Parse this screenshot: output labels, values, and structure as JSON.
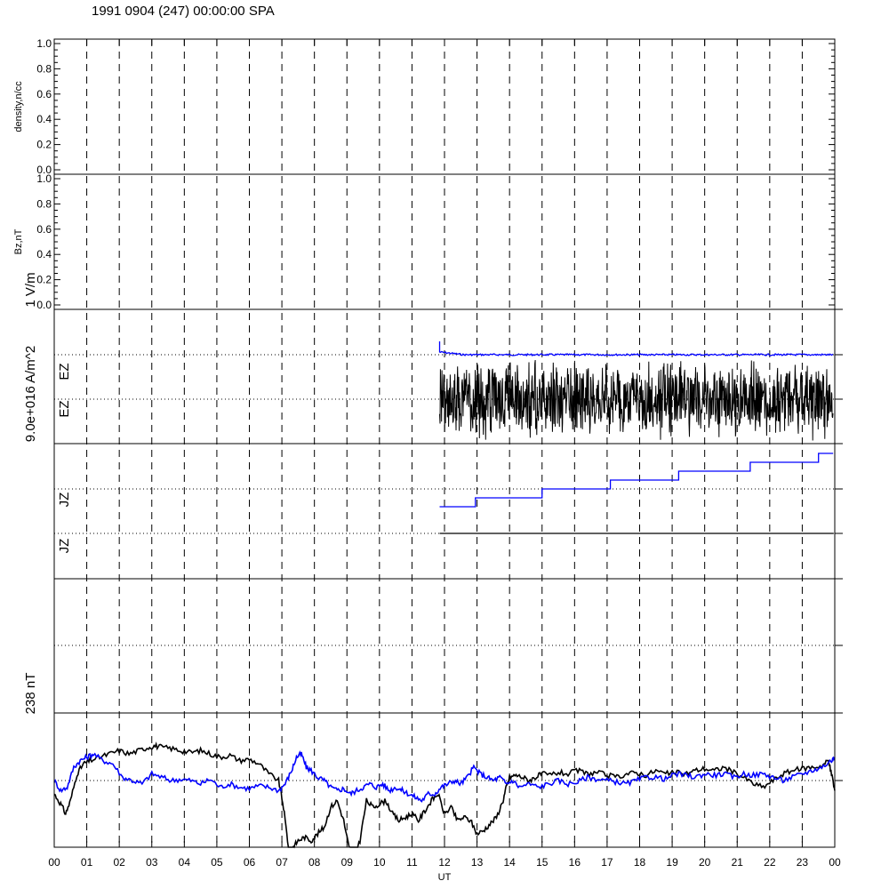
{
  "title": "1991 0904 (247) 00:00:00 SPA",
  "chart_data": {
    "type": "line",
    "xlabel": "UT",
    "xlim": [
      0,
      24
    ],
    "x_ticks": [
      "00",
      "01",
      "02",
      "03",
      "04",
      "05",
      "06",
      "07",
      "08",
      "09",
      "10",
      "11",
      "12",
      "13",
      "14",
      "15",
      "16",
      "17",
      "18",
      "19",
      "20",
      "21",
      "22",
      "23",
      "00"
    ],
    "grid": {
      "vertical_hourly_dashed": true,
      "dotted_reference_lines": true
    },
    "scale_labels": {
      "ef": "1 V/m",
      "jz": "9.0e+016 A/m^2",
      "mag": "238 nT"
    },
    "colors": {
      "primary": "#000000",
      "secondary": "#0000ff"
    },
    "panels": [
      {
        "id": "density",
        "ylabel": "density,n/cc",
        "ylim": [
          0,
          1
        ],
        "yticks": [
          "0.0",
          "0.2",
          "0.4",
          "0.6",
          "0.8",
          "1.0"
        ],
        "series": []
      },
      {
        "id": "bz",
        "ylabel": "Bz,nT",
        "ylim": [
          0,
          1
        ],
        "yticks": [
          "0.0",
          "0.2",
          "0.4",
          "0.6",
          "0.8",
          "1.0"
        ],
        "series": []
      },
      {
        "id": "ez",
        "ylabels": [
          "EZ",
          "EZ"
        ],
        "series": [
          {
            "color": "#0000ff",
            "x_start": 11.85,
            "x_end": 23.95,
            "level_scale_units": 2.0,
            "note_start_spike": 2.3
          },
          {
            "color": "#000000",
            "x_start": 11.85,
            "x_end": 23.95,
            "center_scale_units": 1.0,
            "half_range_scale_units": 0.95
          }
        ]
      },
      {
        "id": "jz",
        "ylabels": [
          "JZ",
          "JZ"
        ],
        "series": [
          {
            "color": "#0000ff",
            "type": "step",
            "x": [
              11.85,
              12.95,
              15.0,
              17.1,
              19.2,
              21.4,
              23.5,
              23.95
            ],
            "y_scale_units": [
              -0.4,
              -0.2,
              0.0,
              0.2,
              0.4,
              0.6,
              0.8,
              0.8
            ]
          },
          {
            "color": "#000000",
            "x_start": 11.85,
            "x_end": 23.95,
            "level_scale_units": -1.0
          }
        ]
      },
      {
        "id": "empty",
        "series": []
      },
      {
        "id": "mag",
        "note": "two magnetometer traces, y in units of the 238 nT scale, relative to central dotted line",
        "series": [
          {
            "color": "#000000",
            "x": [
              0.0,
              0.2,
              0.35,
              0.5,
              0.7,
              0.9,
              1.1,
              1.4,
              1.7,
              2.0,
              2.3,
              2.6,
              2.9,
              3.1,
              3.3,
              3.6,
              3.9,
              4.2,
              4.5,
              4.8,
              5.1,
              5.4,
              5.7,
              6.0,
              6.3,
              6.6,
              6.9,
              7.05,
              7.2,
              7.25,
              7.35,
              7.5,
              7.7,
              7.9,
              8.1,
              8.3,
              8.5,
              8.7,
              8.9,
              9.1,
              9.2,
              9.4,
              9.6,
              9.8,
              10.0,
              10.2,
              10.4,
              10.6,
              10.8,
              11.0,
              11.2,
              11.4,
              11.6,
              11.8,
              12.0,
              12.2,
              12.4,
              12.6,
              12.8,
              13.0,
              13.2,
              13.4,
              13.6,
              13.8,
              13.9,
              14.0,
              14.2,
              14.4,
              14.6,
              14.8,
              15.0,
              15.2,
              15.5,
              15.8,
              16.1,
              16.4,
              16.7,
              17.0,
              17.3,
              17.6,
              17.9,
              18.2,
              18.5,
              18.8,
              19.1,
              19.4,
              19.7,
              20.0,
              20.3,
              20.6,
              20.9,
              21.2,
              21.5,
              21.8,
              22.1,
              22.4,
              22.7,
              23.0,
              23.3,
              23.6,
              23.8,
              23.9,
              24.0
            ],
            "y": [
              -0.2,
              -0.35,
              -0.5,
              -0.3,
              0.1,
              0.25,
              0.3,
              0.35,
              0.4,
              0.45,
              0.4,
              0.45,
              0.5,
              0.52,
              0.5,
              0.48,
              0.45,
              0.42,
              0.45,
              0.4,
              0.35,
              0.38,
              0.3,
              0.32,
              0.25,
              0.1,
              0.0,
              -0.4,
              -1.0,
              -1.4,
              -1.0,
              -0.9,
              -0.85,
              -0.9,
              -0.8,
              -0.7,
              -0.4,
              -0.3,
              -0.6,
              -1.1,
              -1.2,
              -0.9,
              -0.3,
              -0.4,
              -0.35,
              -0.3,
              -0.5,
              -0.6,
              -0.55,
              -0.5,
              -0.6,
              -0.45,
              -0.3,
              -0.2,
              -0.5,
              -0.4,
              -0.6,
              -0.55,
              -0.6,
              -0.8,
              -0.75,
              -0.65,
              -0.55,
              -0.3,
              -0.1,
              0.05,
              0.08,
              0.05,
              0.0,
              0.05,
              0.1,
              0.08,
              0.12,
              0.1,
              0.15,
              0.1,
              0.12,
              0.08,
              0.05,
              0.1,
              0.12,
              0.08,
              0.15,
              0.1,
              0.12,
              0.1,
              0.15,
              0.18,
              0.15,
              0.2,
              0.12,
              0.05,
              -0.05,
              -0.1,
              0.0,
              0.1,
              0.15,
              0.18,
              0.2,
              0.22,
              0.3,
              0.1,
              -0.15
            ]
          },
          {
            "color": "#0000ff",
            "x": [
              0.0,
              0.2,
              0.4,
              0.6,
              0.8,
              1.0,
              1.2,
              1.5,
              1.8,
              2.1,
              2.4,
              2.7,
              3.0,
              3.3,
              3.6,
              3.9,
              4.2,
              4.5,
              4.8,
              5.1,
              5.4,
              5.7,
              6.0,
              6.3,
              6.6,
              6.9,
              7.1,
              7.3,
              7.45,
              7.6,
              7.75,
              7.9,
              8.1,
              8.3,
              8.5,
              8.7,
              8.9,
              9.1,
              9.3,
              9.5,
              9.7,
              9.9,
              10.1,
              10.3,
              10.5,
              10.7,
              10.9,
              11.1,
              11.3,
              11.5,
              11.7,
              11.9,
              12.1,
              12.3,
              12.5,
              12.7,
              12.9,
              13.1,
              13.3,
              13.5,
              13.7,
              13.9,
              14.1,
              14.3,
              14.6,
              14.9,
              15.2,
              15.5,
              15.8,
              16.1,
              16.4,
              16.7,
              17.0,
              17.3,
              17.6,
              17.9,
              18.2,
              18.5,
              18.8,
              19.1,
              19.4,
              19.7,
              20.0,
              20.3,
              20.6,
              20.9,
              21.2,
              21.5,
              21.8,
              22.1,
              22.4,
              22.7,
              23.0,
              23.3,
              23.6,
              23.9,
              24.0
            ],
            "y": [
              0.0,
              -0.15,
              -0.1,
              0.2,
              0.3,
              0.35,
              0.4,
              0.3,
              0.25,
              0.05,
              0.0,
              -0.05,
              0.1,
              0.05,
              0.0,
              0.02,
              0.0,
              -0.05,
              0.02,
              -0.1,
              -0.05,
              -0.1,
              -0.12,
              -0.08,
              -0.1,
              -0.15,
              -0.05,
              0.15,
              0.35,
              0.4,
              0.2,
              0.15,
              0.05,
              0.0,
              -0.1,
              -0.15,
              -0.12,
              -0.2,
              -0.15,
              -0.1,
              -0.05,
              -0.1,
              -0.05,
              -0.15,
              -0.1,
              -0.15,
              -0.2,
              -0.25,
              -0.3,
              -0.2,
              -0.2,
              -0.1,
              -0.05,
              0.0,
              -0.05,
              0.05,
              0.2,
              0.1,
              0.05,
              0.0,
              0.05,
              -0.05,
              0.0,
              -0.1,
              -0.05,
              -0.1,
              -0.05,
              0.0,
              -0.05,
              -0.02,
              0.05,
              0.02,
              0.0,
              -0.02,
              -0.05,
              0.0,
              0.05,
              0.05,
              0.02,
              0.1,
              0.08,
              0.05,
              0.1,
              0.08,
              0.1,
              0.05,
              0.1,
              0.08,
              0.1,
              0.05,
              0.0,
              0.05,
              0.1,
              0.15,
              0.2,
              0.3,
              0.35
            ]
          }
        ]
      }
    ]
  }
}
